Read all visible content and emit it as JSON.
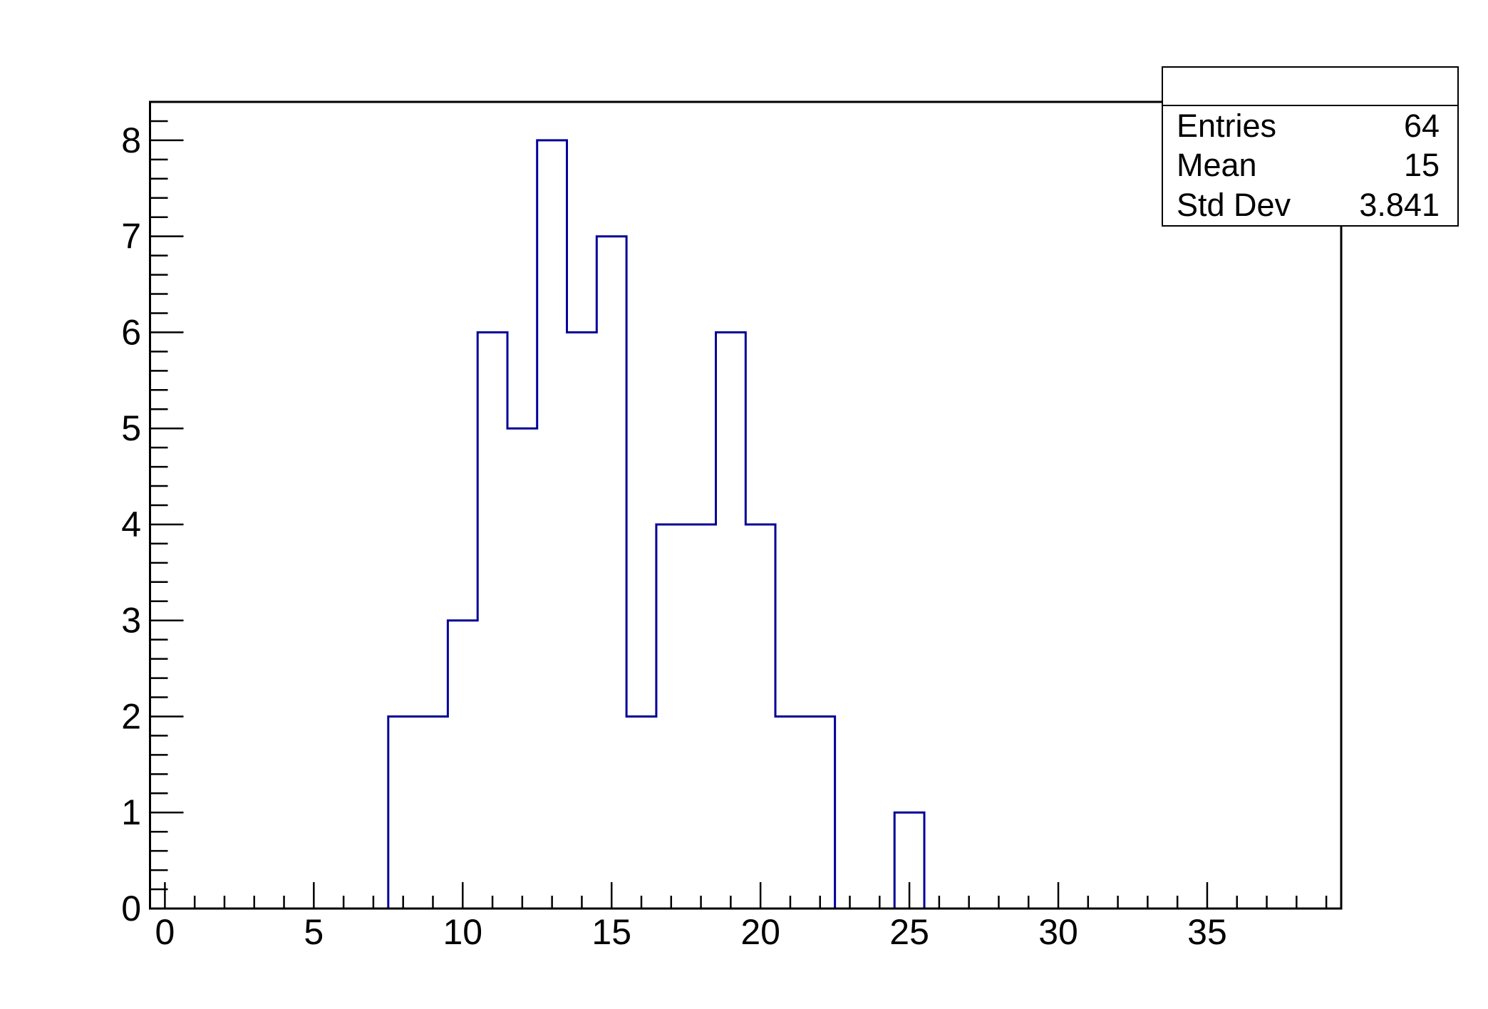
{
  "chart_data": {
    "type": "histogram",
    "title": "",
    "xlabel": "",
    "ylabel": "",
    "line_color": "#000099",
    "axis_color": "#000000",
    "background_color": "#ffffff",
    "x_min": -0.5,
    "x_max": 39.5,
    "y_min": 0,
    "y_max": 8.4,
    "bin_start": 7.5,
    "bin_width": 1,
    "bin_centers": [
      8,
      9,
      10,
      11,
      12,
      13,
      14,
      15,
      16,
      17,
      18,
      19,
      20,
      21,
      22,
      23,
      24,
      25
    ],
    "counts": [
      2,
      2,
      3,
      6,
      5,
      8,
      6,
      7,
      2,
      4,
      4,
      6,
      4,
      2,
      2,
      0,
      0,
      1
    ],
    "x_major_ticks": [
      0,
      5,
      10,
      15,
      20,
      25,
      30,
      35
    ],
    "x_major_tick_labels": [
      "0",
      "5",
      "10",
      "15",
      "20",
      "25",
      "30",
      "35"
    ],
    "x_minor_tick_step": 1,
    "y_major_ticks": [
      0,
      1,
      2,
      3,
      4,
      5,
      6,
      7,
      8
    ],
    "y_major_tick_labels": [
      "0",
      "1",
      "2",
      "3",
      "4",
      "5",
      "6",
      "7",
      "8"
    ],
    "y_minor_tick_step": 0.2,
    "grid": false,
    "legend": "none"
  },
  "stats_box": {
    "title": "",
    "rows": [
      {
        "label": "Entries",
        "value": "64"
      },
      {
        "label": "Mean",
        "value": "15"
      },
      {
        "label": "Std Dev",
        "value": "3.841"
      }
    ]
  }
}
